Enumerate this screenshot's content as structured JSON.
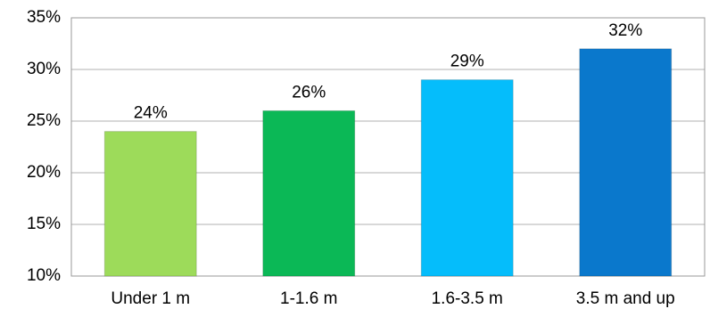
{
  "chart_data": {
    "type": "bar",
    "categories": [
      "Under 1 m",
      "1-1.6 m",
      "1.6-3.5 m",
      "3.5 m and up"
    ],
    "values": [
      24,
      26,
      29,
      32
    ],
    "value_labels": [
      "24%",
      "26%",
      "29%",
      "32%"
    ],
    "colors": [
      "#9ddb5a",
      "#0bb856",
      "#05bdfb",
      "#0a78cc"
    ],
    "ylim": [
      10,
      35
    ],
    "yticks": [
      {
        "value": 10,
        "label": "10%"
      },
      {
        "value": 15,
        "label": "15%"
      },
      {
        "value": 20,
        "label": "20%"
      },
      {
        "value": 25,
        "label": "25%"
      },
      {
        "value": 30,
        "label": "30%"
      },
      {
        "value": 35,
        "label": "35%"
      }
    ],
    "grid": true
  }
}
